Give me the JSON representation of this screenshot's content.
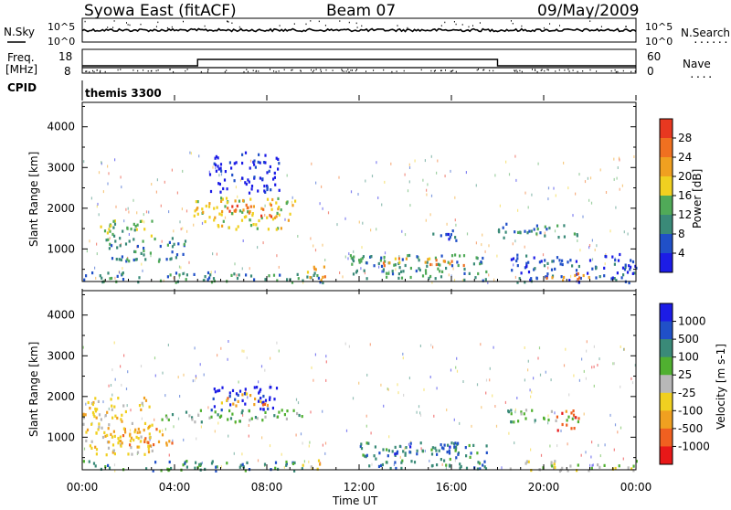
{
  "header": {
    "title": "Syowa East (fitACF)",
    "beam": "Beam 07",
    "date": "09/May/2009"
  },
  "status_panels": {
    "nsky_label": "N.Sky",
    "nsearch_label": "N.Search",
    "nsky_ticks": [
      "10^5",
      "10^0"
    ],
    "nsearch_ticks": [
      "10^5",
      "10^0"
    ],
    "freq_label_1": "Freq.",
    "freq_label_2": "[MHz]",
    "freq_ticks": [
      "18",
      "8"
    ],
    "nave_label": "Nave",
    "nave_ticks": [
      "60",
      "0"
    ],
    "dots": "·······",
    "dots_short": "····",
    "cpid_label": "CPID",
    "cpid_value": "themis 3300"
  },
  "colors": {
    "power_scale": [
      "#1c1ce6",
      "#2050c8",
      "#3a8a78",
      "#50aa58",
      "#f0d020",
      "#f0a020",
      "#f07020",
      "#e83820"
    ],
    "velocity_scale": [
      "#1c1ce6",
      "#2050c8",
      "#3a8a78",
      "#50b030",
      "#b8b8b8",
      "#f0d020",
      "#f0a020",
      "#f06020",
      "#e81818"
    ],
    "ground_scatter": "#b4b4b4"
  },
  "chart_data": [
    {
      "type": "heatmap",
      "name": "power",
      "ylabel": "Slant Range [km]",
      "xlim": [
        "00:00",
        "24:00"
      ],
      "ylim": [
        200,
        4600
      ],
      "yticks": [
        "1000",
        "2000",
        "3000",
        "4000"
      ],
      "colorbar_label": "Power [dB]",
      "colorbar_ticks": [
        "4",
        "8",
        "12",
        "16",
        "20",
        "24",
        "28"
      ],
      "regions": [
        {
          "t0": 0.5,
          "t1": 3.0,
          "r0": 1350,
          "r1": 1800,
          "level": 4
        },
        {
          "t0": 1.0,
          "t1": 4.5,
          "r0": 700,
          "r1": 1300,
          "level": 3
        },
        {
          "t0": 4.8,
          "t1": 9.2,
          "r0": 1500,
          "r1": 2300,
          "level": 5
        },
        {
          "t0": 6.2,
          "t1": 8.4,
          "r0": 1800,
          "r1": 2150,
          "level": 7
        },
        {
          "t0": 5.5,
          "t1": 8.5,
          "r0": 2400,
          "r1": 3400,
          "level": 1
        },
        {
          "t0": 0.0,
          "t1": 10.5,
          "r0": 200,
          "r1": 450,
          "level": 3
        },
        {
          "t0": 9.5,
          "t1": 10.5,
          "r0": 250,
          "r1": 600,
          "level": 6
        },
        {
          "t0": 11.5,
          "t1": 17.5,
          "r0": 250,
          "r1": 900,
          "level": 3
        },
        {
          "t0": 13.0,
          "t1": 16.5,
          "r0": 600,
          "r1": 800,
          "level": 6
        },
        {
          "t0": 15.0,
          "t1": 16.5,
          "r0": 1200,
          "r1": 1500,
          "level": 2
        },
        {
          "t0": 18.0,
          "t1": 21.5,
          "r0": 1300,
          "r1": 1650,
          "level": 3
        },
        {
          "t0": 18.5,
          "t1": 24.0,
          "r0": 200,
          "r1": 900,
          "level": 2
        },
        {
          "t0": 20.0,
          "t1": 22.0,
          "r0": 250,
          "r1": 450,
          "level": 6
        }
      ]
    },
    {
      "type": "heatmap",
      "name": "velocity",
      "xlabel": "Time UT",
      "ylabel": "Slant Range [km]",
      "xlim": [
        "00:00",
        "24:00"
      ],
      "ylim": [
        200,
        4600
      ],
      "yticks": [
        "1000",
        "2000",
        "3000",
        "4000"
      ],
      "xticks": [
        "00:00",
        "04:00",
        "08:00",
        "12:00",
        "16:00",
        "20:00",
        "00:00"
      ],
      "colorbar_label": "Velocity [m s-1]",
      "colorbar_ticks": [
        "1000",
        "500",
        "100",
        "25",
        "-25",
        "-100",
        "-500",
        "-1000"
      ],
      "regions": [
        {
          "t0": 0.0,
          "t1": 3.0,
          "r0": 600,
          "r1": 2000,
          "level": 6
        },
        {
          "t0": 1.0,
          "t1": 4.0,
          "r0": 800,
          "r1": 1300,
          "level": 7
        },
        {
          "t0": 3.0,
          "t1": 9.5,
          "r0": 1400,
          "r1": 1700,
          "level": 4
        },
        {
          "t0": 5.5,
          "t1": 8.5,
          "r0": 1700,
          "r1": 2300,
          "level": 1
        },
        {
          "t0": 6.0,
          "t1": 8.0,
          "r0": 1800,
          "r1": 2100,
          "level": 7
        },
        {
          "t0": 0.0,
          "t1": 9.5,
          "r0": 200,
          "r1": 450,
          "level": 3
        },
        {
          "t0": 9.5,
          "t1": 10.5,
          "r0": 250,
          "r1": 500,
          "level": 6
        },
        {
          "t0": 12.0,
          "t1": 17.5,
          "r0": 250,
          "r1": 900,
          "level": 3
        },
        {
          "t0": 13.5,
          "t1": 16.5,
          "r0": 600,
          "r1": 900,
          "level": 2
        },
        {
          "t0": 18.0,
          "t1": 21.5,
          "r0": 1400,
          "r1": 1700,
          "level": 4
        },
        {
          "t0": 20.5,
          "t1": 21.5,
          "r0": 1200,
          "r1": 1700,
          "level": 8
        },
        {
          "t0": 18.5,
          "t1": 24.0,
          "r0": 200,
          "r1": 450,
          "level": 5
        }
      ]
    }
  ]
}
